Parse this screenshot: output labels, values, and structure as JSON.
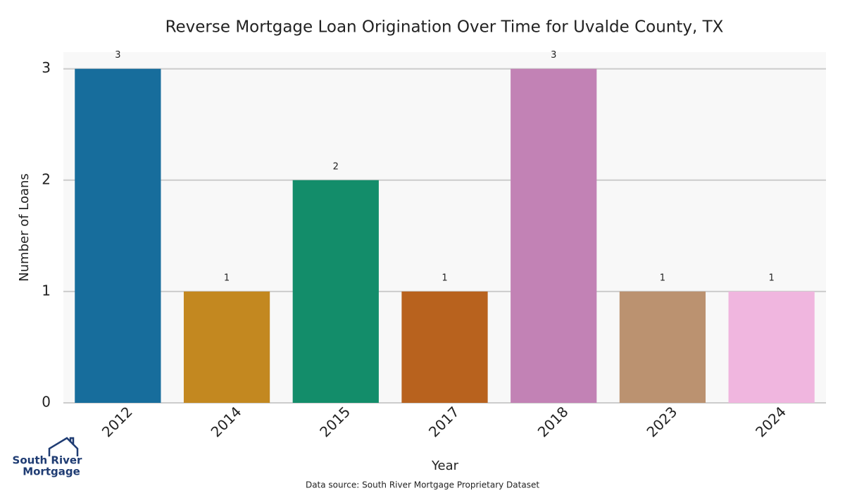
{
  "chart_data": {
    "type": "bar",
    "title": "Reverse Mortgage Loan Origination Over Time for Uvalde County, TX",
    "x_label": "Year",
    "y_label": "Number of Loans",
    "categories": [
      "2012",
      "2014",
      "2015",
      "2017",
      "2018",
      "2023",
      "2024"
    ],
    "values": [
      3,
      1,
      2,
      1,
      3,
      1,
      1
    ],
    "colors": [
      "#176d9c",
      "#c38820",
      "#138d6a",
      "#b8621e",
      "#c282b5",
      "#bb9270",
      "#f0b6df"
    ],
    "ylim": [
      0,
      3.15
    ],
    "yticks": [
      0,
      1,
      2,
      3
    ],
    "grid": true,
    "source": "Data source: South River Mortgage Proprietary Dataset"
  },
  "logo": {
    "line1": "South River",
    "line2": "Mortgage"
  }
}
